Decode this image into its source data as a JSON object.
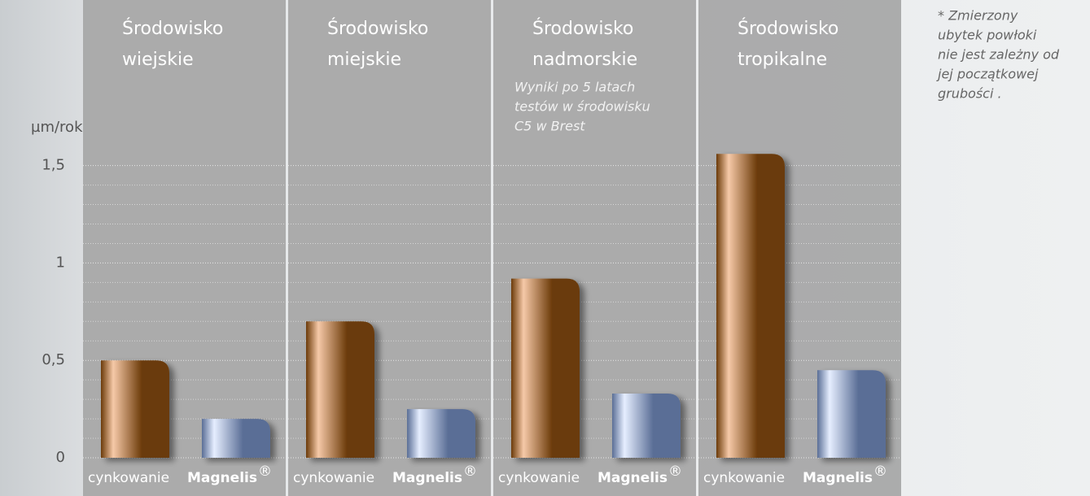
{
  "chart_data": {
    "type": "bar",
    "y_unit": "µm/rok",
    "categories": [
      [
        "Środowisko",
        "wiejskie"
      ],
      [
        "Środowisko",
        "miejskie"
      ],
      [
        "Środowisko",
        "nadmorskie"
      ],
      [
        "Środowisko",
        "tropikalne"
      ]
    ],
    "annotation": [
      "Wyniki po 5 latach",
      "testów w środowisku",
      "C5 w Brest"
    ],
    "footnote": [
      "* Zmierzony",
      "ubytek powłoki",
      "nie jest zależny od",
      "jej początkowej",
      "grubości ."
    ],
    "series": [
      {
        "name": "cynkowanie",
        "color": "#6b3a08",
        "values": [
          0.5,
          0.7,
          0.92,
          1.56
        ]
      },
      {
        "name": "Magnelis",
        "name_sup": "®",
        "color": "#5a6e96",
        "values": [
          0.2,
          0.25,
          0.33,
          0.45
        ]
      }
    ],
    "ylim": [
      0,
      2.35
    ],
    "yticks": [
      0,
      {
        "value": 0.5,
        "label": "0,5"
      },
      1,
      {
        "value": 1.5,
        "label": "1,5"
      }
    ],
    "minor_yticks": [
      0.1,
      0.2,
      0.3,
      0.4,
      0.6,
      0.7,
      0.8,
      0.9,
      1.1,
      1.2,
      1.3,
      1.4
    ],
    "grid": true
  }
}
